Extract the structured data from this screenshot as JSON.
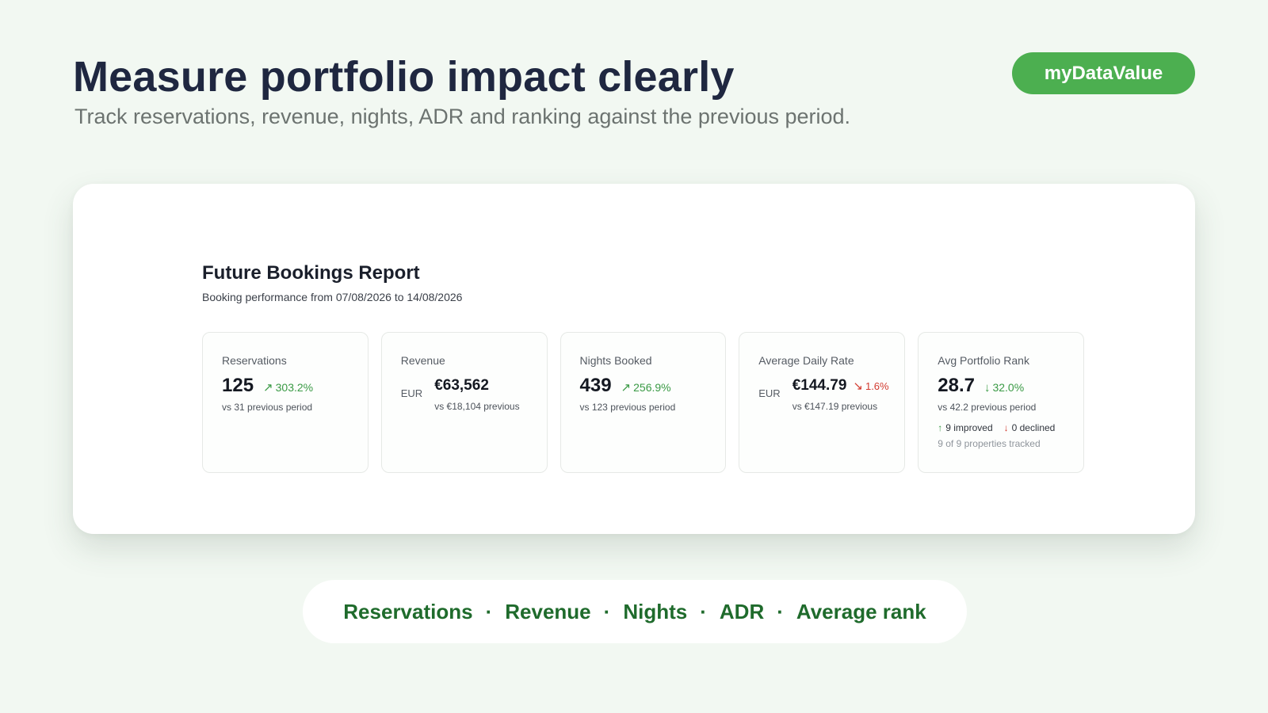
{
  "hero": {
    "headline": "Measure portfolio impact clearly",
    "subline": "Track reservations, revenue, nights, ADR and ranking against the previous period.",
    "brand": "myDataValue"
  },
  "report": {
    "title": "Future Bookings Report",
    "range": "Booking performance from 07/08/2026 to 14/08/2026",
    "cards": {
      "reservations": {
        "label": "Reservations",
        "value": "125",
        "change": "303.2%",
        "trend": "up",
        "compare": "vs 31 previous period"
      },
      "revenue": {
        "label": "Revenue",
        "currency": "EUR",
        "value": "€63,562",
        "compare": "vs €18,104 previous"
      },
      "nights": {
        "label": "Nights Booked",
        "value": "439",
        "change": "256.9%",
        "trend": "up",
        "compare": "vs 123 previous period"
      },
      "adr": {
        "label": "Average Daily Rate",
        "currency": "EUR",
        "value": "€144.79",
        "change": "1.6%",
        "trend": "down",
        "compare": "vs €147.19 previous"
      },
      "rank": {
        "label": "Avg Portfolio Rank",
        "value": "28.7",
        "change": "32.0%",
        "trend": "improved",
        "compare": "vs 42.2 previous period",
        "improved": "9 improved",
        "declined": "0 declined",
        "tracked": "9 of 9 properties tracked"
      }
    }
  },
  "colors": {
    "background": "#f2f8f2",
    "brand_green": "#4caf50",
    "positive": "#3a9a45",
    "negative": "#d23a2f",
    "footer_text": "#1f6b2c"
  },
  "icons": {
    "trend_up": "arrow-up-right-icon",
    "trend_down": "arrow-down-right-icon",
    "rank_improved": "arrow-down-icon",
    "improved": "arrow-up-icon",
    "declined": "arrow-down-icon"
  },
  "footer": {
    "items": [
      "Reservations",
      "Revenue",
      "Nights",
      "ADR",
      "Average rank"
    ],
    "separator": "·"
  }
}
